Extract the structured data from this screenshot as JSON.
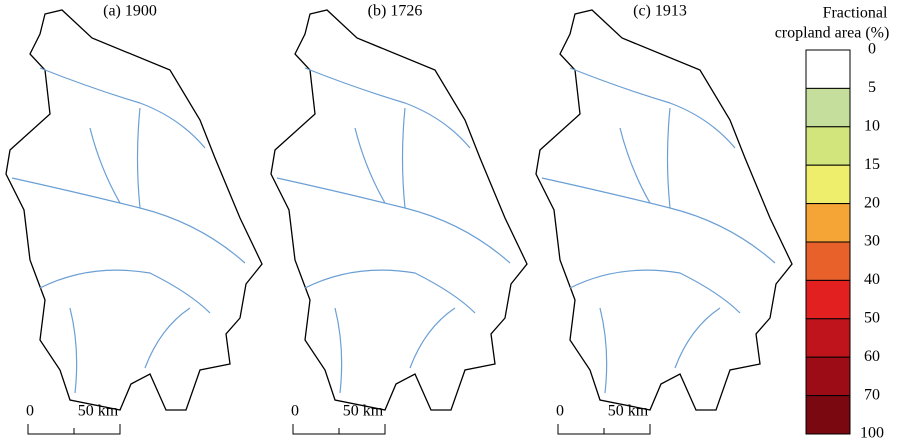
{
  "panels": [
    {
      "title": "(a) 1900",
      "scale_bar": {
        "start": "0",
        "end": "50 km"
      }
    },
    {
      "title": "(b) 1726",
      "scale_bar": {
        "start": "0",
        "end": "50 km"
      }
    },
    {
      "title": "(c) 1913",
      "scale_bar": {
        "start": "0",
        "end": "50 km"
      }
    }
  ],
  "legend": {
    "title": [
      "Fractional",
      "cropland area (%)"
    ],
    "ticks": [
      0,
      5,
      10,
      15,
      20,
      30,
      40,
      50,
      60,
      70,
      100
    ],
    "colors": [
      "#ffffff",
      "#c5de9c",
      "#d2e57c",
      "#eeee6c",
      "#f4a536",
      "#e8612a",
      "#e2201f",
      "#c0141c",
      "#9c0c16",
      "#7a0810"
    ]
  }
}
